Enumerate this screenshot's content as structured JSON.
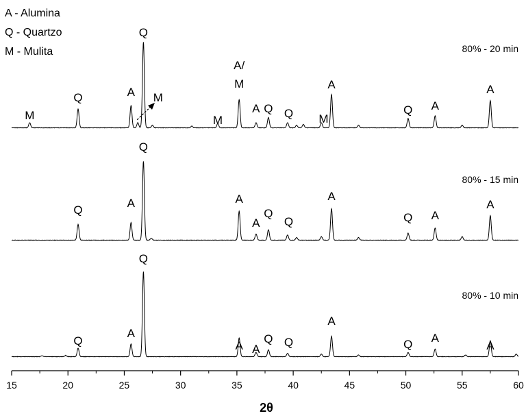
{
  "chart_data": {
    "type": "line",
    "title": "",
    "xlabel": "2θ",
    "ylabel": "",
    "xlim": [
      15,
      60
    ],
    "xticks": [
      15,
      20,
      25,
      30,
      35,
      40,
      45,
      50,
      55,
      60
    ],
    "legend_position": "top-left",
    "legend": [
      "A - Alumina",
      "Q - Quartzo",
      "M - Mulita"
    ],
    "series": [
      {
        "name": "80% - 20 min",
        "peaks": [
          {
            "x": 16.6,
            "h": 0.06
          },
          {
            "x": 20.9,
            "h": 0.22
          },
          {
            "x": 25.6,
            "h": 0.26
          },
          {
            "x": 26.2,
            "h": 0.06
          },
          {
            "x": 26.7,
            "h": 1.0
          },
          {
            "x": 27.5,
            "h": 0.03
          },
          {
            "x": 31.0,
            "h": 0.02
          },
          {
            "x": 33.3,
            "h": 0.05
          },
          {
            "x": 35.2,
            "h": 0.33
          },
          {
            "x": 36.7,
            "h": 0.06
          },
          {
            "x": 37.8,
            "h": 0.12
          },
          {
            "x": 39.5,
            "h": 0.06
          },
          {
            "x": 40.3,
            "h": 0.03
          },
          {
            "x": 40.9,
            "h": 0.04
          },
          {
            "x": 42.5,
            "h": 0.06
          },
          {
            "x": 43.4,
            "h": 0.39
          },
          {
            "x": 45.8,
            "h": 0.03
          },
          {
            "x": 50.2,
            "h": 0.11
          },
          {
            "x": 52.6,
            "h": 0.14
          },
          {
            "x": 55.0,
            "h": 0.03
          },
          {
            "x": 57.5,
            "h": 0.32
          }
        ],
        "annotations": [
          {
            "text": "M",
            "x": 16.6
          },
          {
            "text": "Q",
            "x": 20.9
          },
          {
            "text": "A",
            "x": 25.6
          },
          {
            "text": "Q",
            "x": 26.7
          },
          {
            "text": "M",
            "x": 28.0
          },
          {
            "text": "M",
            "x": 33.3
          },
          {
            "text": "A/",
            "x": 35.2
          },
          {
            "text": "M",
            "x": 35.2
          },
          {
            "text": "A",
            "x": 36.7
          },
          {
            "text": "Q",
            "x": 37.8
          },
          {
            "text": "Q",
            "x": 39.6
          },
          {
            "text": "M",
            "x": 42.7
          },
          {
            "text": "A",
            "x": 43.4
          },
          {
            "text": "Q",
            "x": 50.2
          },
          {
            "text": "A",
            "x": 52.6
          },
          {
            "text": "A",
            "x": 57.5
          }
        ]
      },
      {
        "name": "80% - 15 min",
        "peaks": [
          {
            "x": 20.9,
            "h": 0.18
          },
          {
            "x": 25.6,
            "h": 0.2
          },
          {
            "x": 26.7,
            "h": 0.9
          },
          {
            "x": 27.4,
            "h": 0.02
          },
          {
            "x": 35.2,
            "h": 0.33
          },
          {
            "x": 36.7,
            "h": 0.07
          },
          {
            "x": 37.8,
            "h": 0.12
          },
          {
            "x": 39.5,
            "h": 0.06
          },
          {
            "x": 40.3,
            "h": 0.03
          },
          {
            "x": 42.5,
            "h": 0.04
          },
          {
            "x": 43.4,
            "h": 0.36
          },
          {
            "x": 45.8,
            "h": 0.03
          },
          {
            "x": 50.2,
            "h": 0.08
          },
          {
            "x": 52.6,
            "h": 0.14
          },
          {
            "x": 55.0,
            "h": 0.04
          },
          {
            "x": 57.5,
            "h": 0.28
          }
        ],
        "annotations": [
          {
            "text": "Q",
            "x": 20.9
          },
          {
            "text": "A",
            "x": 25.6
          },
          {
            "text": "Q",
            "x": 26.7
          },
          {
            "text": "A",
            "x": 35.2
          },
          {
            "text": "A",
            "x": 36.7
          },
          {
            "text": "Q",
            "x": 37.8
          },
          {
            "text": "Q",
            "x": 39.6
          },
          {
            "text": "A",
            "x": 43.4
          },
          {
            "text": "Q",
            "x": 50.2
          },
          {
            "text": "A",
            "x": 52.6
          },
          {
            "text": "A",
            "x": 57.5
          }
        ]
      },
      {
        "name": "80% - 10 min",
        "peaks": [
          {
            "x": 17.7,
            "h": 0.01
          },
          {
            "x": 19.8,
            "h": 0.015
          },
          {
            "x": 20.9,
            "h": 0.1
          },
          {
            "x": 25.6,
            "h": 0.15
          },
          {
            "x": 26.7,
            "h": 1.0
          },
          {
            "x": 35.2,
            "h": 0.22
          },
          {
            "x": 36.7,
            "h": 0.05
          },
          {
            "x": 37.8,
            "h": 0.08
          },
          {
            "x": 39.5,
            "h": 0.04
          },
          {
            "x": 42.5,
            "h": 0.03
          },
          {
            "x": 43.4,
            "h": 0.24
          },
          {
            "x": 45.8,
            "h": 0.02
          },
          {
            "x": 50.2,
            "h": 0.05
          },
          {
            "x": 52.6,
            "h": 0.09
          },
          {
            "x": 55.3,
            "h": 0.02
          },
          {
            "x": 57.5,
            "h": 0.19
          },
          {
            "x": 59.8,
            "h": 0.03
          }
        ],
        "annotations": [
          {
            "text": "Q",
            "x": 20.9
          },
          {
            "text": "A",
            "x": 25.6
          },
          {
            "text": "Q",
            "x": 26.7
          },
          {
            "text": "A",
            "x": 35.2
          },
          {
            "text": "A",
            "x": 36.7
          },
          {
            "text": "Q",
            "x": 37.8
          },
          {
            "text": "Q",
            "x": 39.6
          },
          {
            "text": "A",
            "x": 43.4
          },
          {
            "text": "Q",
            "x": 50.2
          },
          {
            "text": "A",
            "x": 52.6
          },
          {
            "text": "A",
            "x": 57.5
          }
        ]
      }
    ]
  }
}
